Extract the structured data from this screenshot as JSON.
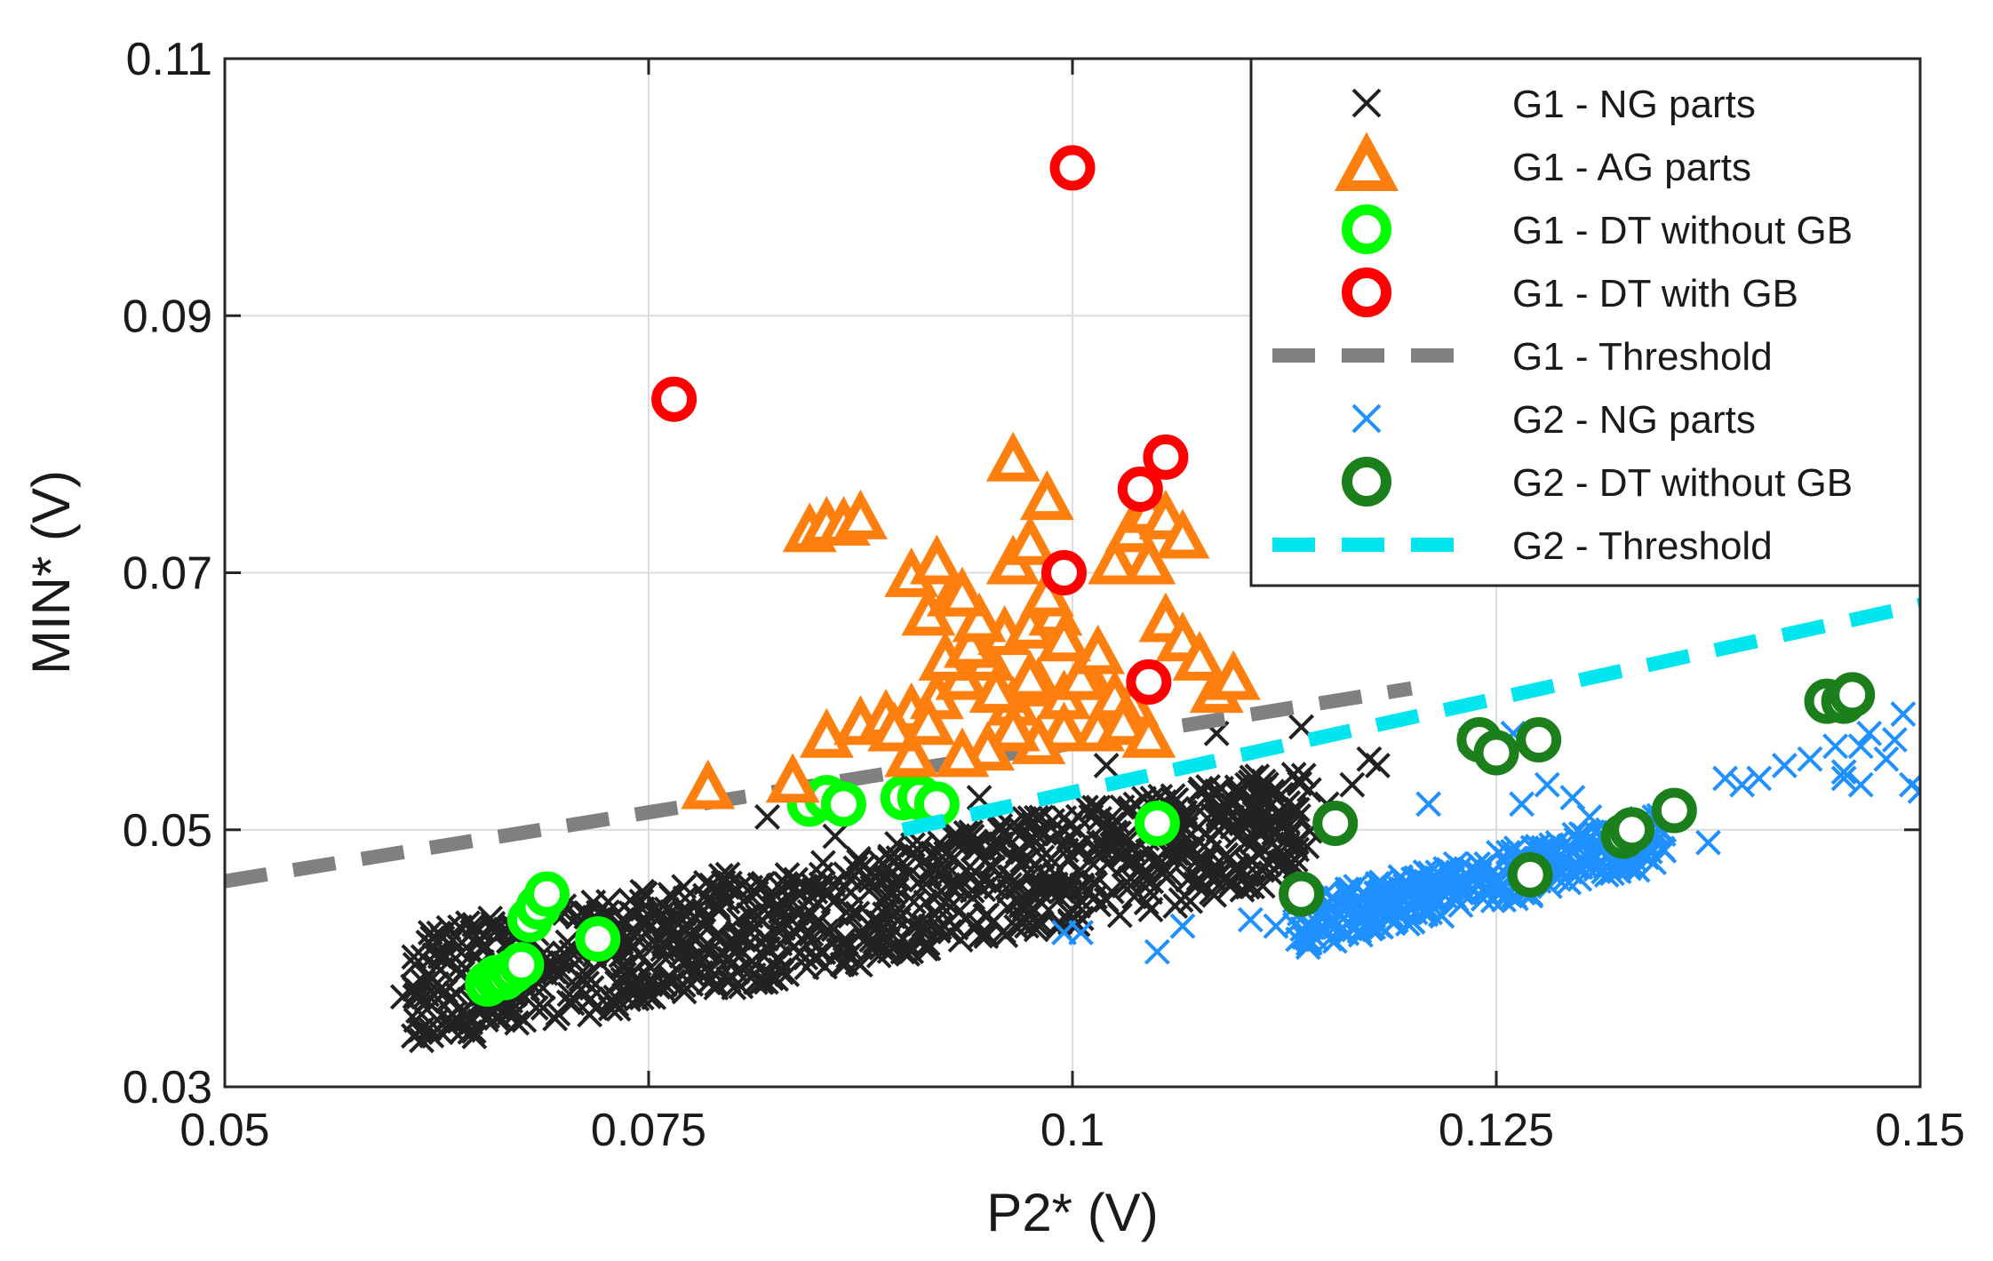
{
  "chart_data": {
    "type": "scatter",
    "title": "",
    "xlabel": "P2* (V)",
    "ylabel": "MIN* (V)",
    "xlim": [
      0.05,
      0.15
    ],
    "ylim": [
      0.03,
      0.11
    ],
    "xticks": [
      0.05,
      0.075,
      0.1,
      0.125,
      0.15
    ],
    "xtick_labels": [
      "0.05",
      "0.075",
      "0.1",
      "0.125",
      "0.15"
    ],
    "yticks": [
      0.03,
      0.05,
      0.07,
      0.09,
      0.11
    ],
    "ytick_labels": [
      "0.03",
      "0.05",
      "0.07",
      "0.09",
      "0.11"
    ],
    "grid": true,
    "legend_position": "top-right",
    "series": [
      {
        "name": "G1 - NG parts",
        "marker": "x",
        "color": "#222222",
        "cloud": {
          "x_range": [
            0.061,
            0.114
          ],
          "count": 900,
          "base": [
            0.061,
            0.0375
          ],
          "slope": 0.245,
          "spread": 0.0045
        },
        "points": [
          [
            0.0605,
            0.037
          ],
          [
            0.0625,
            0.038
          ],
          [
            0.0645,
            0.035
          ],
          [
            0.0655,
            0.0355
          ],
          [
            0.0675,
            0.038
          ],
          [
            0.0705,
            0.0365
          ],
          [
            0.074,
            0.0375
          ],
          [
            0.0775,
            0.038
          ],
          [
            0.0985,
            0.0455
          ],
          [
            0.1005,
            0.0445
          ],
          [
            0.1085,
            0.0575
          ],
          [
            0.1135,
            0.058
          ],
          [
            0.115,
            0.052
          ],
          [
            0.1165,
            0.0535
          ],
          [
            0.1175,
            0.0555
          ],
          [
            0.118,
            0.055
          ],
          [
            0.082,
            0.051
          ],
          [
            0.086,
            0.0495
          ],
          [
            0.0945,
            0.0525
          ],
          [
            0.102,
            0.055
          ]
        ]
      },
      {
        "name": "G1 - AG parts",
        "marker": "triangle",
        "color": "#ff7f0e",
        "points": [
          [
            0.0785,
            0.053
          ],
          [
            0.0835,
            0.0535
          ],
          [
            0.0845,
            0.073
          ],
          [
            0.0855,
            0.0735
          ],
          [
            0.0865,
            0.0735
          ],
          [
            0.0875,
            0.074
          ],
          [
            0.0855,
            0.057
          ],
          [
            0.0875,
            0.058
          ],
          [
            0.089,
            0.0585
          ],
          [
            0.0905,
            0.059
          ],
          [
            0.092,
            0.06
          ],
          [
            0.0935,
            0.0615
          ],
          [
            0.095,
            0.063
          ],
          [
            0.0965,
            0.0595
          ],
          [
            0.098,
            0.061
          ],
          [
            0.0995,
            0.06
          ],
          [
            0.101,
            0.0615
          ],
          [
            0.0925,
            0.063
          ],
          [
            0.094,
            0.064
          ],
          [
            0.096,
            0.065
          ],
          [
            0.0975,
            0.0655
          ],
          [
            0.099,
            0.0665
          ],
          [
            0.0915,
            0.0665
          ],
          [
            0.093,
            0.068
          ],
          [
            0.0945,
            0.066
          ],
          [
            0.0965,
            0.0705
          ],
          [
            0.0975,
            0.072
          ],
          [
            0.0985,
            0.068
          ],
          [
            0.0905,
            0.0695
          ],
          [
            0.092,
            0.0705
          ],
          [
            0.0935,
            0.068
          ],
          [
            0.0965,
            0.0785
          ],
          [
            0.0985,
            0.0755
          ],
          [
            0.1025,
            0.0705
          ],
          [
            0.1035,
            0.073
          ],
          [
            0.1045,
            0.0745
          ],
          [
            0.1055,
            0.074
          ],
          [
            0.1065,
            0.0725
          ],
          [
            0.1045,
            0.0705
          ],
          [
            0.1055,
            0.066
          ],
          [
            0.1065,
            0.0645
          ],
          [
            0.1075,
            0.063
          ],
          [
            0.1085,
            0.0605
          ],
          [
            0.1095,
            0.0615
          ],
          [
            0.1035,
            0.0595
          ],
          [
            0.1025,
            0.06
          ],
          [
            0.1015,
            0.0575
          ],
          [
            0.0995,
            0.0575
          ],
          [
            0.098,
            0.0565
          ],
          [
            0.0965,
            0.0575
          ],
          [
            0.095,
            0.056
          ],
          [
            0.0935,
            0.0555
          ],
          [
            0.0905,
            0.0555
          ],
          [
            0.103,
            0.058
          ],
          [
            0.1045,
            0.057
          ],
          [
            0.0975,
            0.0615
          ],
          [
            0.0955,
            0.0605
          ],
          [
            0.0895,
            0.0575
          ],
          [
            0.0915,
            0.058
          ],
          [
            0.1005,
            0.0615
          ],
          [
            0.1015,
            0.0635
          ],
          [
            0.0995,
            0.0645
          ]
        ]
      },
      {
        "name": "G1 - DT without GB",
        "marker": "circle",
        "color": "#00ff00",
        "points": [
          [
            0.0655,
            0.038
          ],
          [
            0.066,
            0.0385
          ],
          [
            0.0665,
            0.0385
          ],
          [
            0.067,
            0.039
          ],
          [
            0.0675,
            0.0395
          ],
          [
            0.068,
            0.043
          ],
          [
            0.0685,
            0.044
          ],
          [
            0.069,
            0.045
          ],
          [
            0.072,
            0.0415
          ],
          [
            0.0845,
            0.052
          ],
          [
            0.0855,
            0.0525
          ],
          [
            0.0865,
            0.052
          ],
          [
            0.09,
            0.0525
          ],
          [
            0.091,
            0.0525
          ],
          [
            0.092,
            0.052
          ],
          [
            0.105,
            0.0505
          ]
        ]
      },
      {
        "name": "G1 - DT with GB",
        "marker": "circle",
        "color": "#ff0000",
        "points": [
          [
            0.1,
            0.1015
          ],
          [
            0.0765,
            0.0835
          ],
          [
            0.1055,
            0.079
          ],
          [
            0.104,
            0.0765
          ],
          [
            0.0995,
            0.07
          ],
          [
            0.1045,
            0.0615
          ]
        ]
      },
      {
        "name": "G1 - Threshold",
        "marker": "dashed-line",
        "color": "#808080",
        "line": [
          [
            0.05,
            0.046
          ],
          [
            0.12,
            0.061
          ]
        ]
      },
      {
        "name": "G2 - NG parts",
        "marker": "x",
        "color": "#1e90ff",
        "cloud": {
          "x_range": [
            0.113,
            0.135
          ],
          "count": 320,
          "base": [
            0.113,
            0.0425
          ],
          "slope": 0.31,
          "spread": 0.002
        },
        "points": [
          [
            0.1005,
            0.042
          ],
          [
            0.0995,
            0.042
          ],
          [
            0.105,
            0.0405
          ],
          [
            0.1065,
            0.0425
          ],
          [
            0.1105,
            0.043
          ],
          [
            0.112,
            0.0425
          ],
          [
            0.121,
            0.052
          ],
          [
            0.1235,
            0.057
          ],
          [
            0.126,
            0.0575
          ],
          [
            0.1265,
            0.052
          ],
          [
            0.128,
            0.0535
          ],
          [
            0.1295,
            0.0525
          ],
          [
            0.1305,
            0.051
          ],
          [
            0.1325,
            0.05
          ],
          [
            0.1375,
            0.049
          ],
          [
            0.1385,
            0.054
          ],
          [
            0.1395,
            0.0535
          ],
          [
            0.1405,
            0.054
          ],
          [
            0.142,
            0.055
          ],
          [
            0.1435,
            0.0555
          ],
          [
            0.145,
            0.0565
          ],
          [
            0.1455,
            0.054
          ],
          [
            0.1465,
            0.0535
          ],
          [
            0.147,
            0.0575
          ],
          [
            0.148,
            0.0555
          ],
          [
            0.1485,
            0.057
          ],
          [
            0.149,
            0.059
          ],
          [
            0.1495,
            0.0535
          ],
          [
            0.15,
            0.053
          ],
          [
            0.1455,
            0.0545
          ],
          [
            0.1465,
            0.0565
          ]
        ]
      },
      {
        "name": "G2 - DT without GB",
        "marker": "circle",
        "color": "#1b7f1b",
        "points": [
          [
            0.1135,
            0.045
          ],
          [
            0.1155,
            0.0505
          ],
          [
            0.124,
            0.057
          ],
          [
            0.125,
            0.056
          ],
          [
            0.1275,
            0.057
          ],
          [
            0.127,
            0.0465
          ],
          [
            0.1325,
            0.0495
          ],
          [
            0.133,
            0.05
          ],
          [
            0.1355,
            0.0515
          ],
          [
            0.1445,
            0.06
          ],
          [
            0.1455,
            0.06
          ],
          [
            0.146,
            0.0605
          ]
        ]
      },
      {
        "name": "G2 - Threshold",
        "marker": "dashed-line",
        "color": "#00e5ee",
        "line": [
          [
            0.09,
            0.05
          ],
          [
            0.15,
            0.0675
          ]
        ]
      }
    ]
  }
}
